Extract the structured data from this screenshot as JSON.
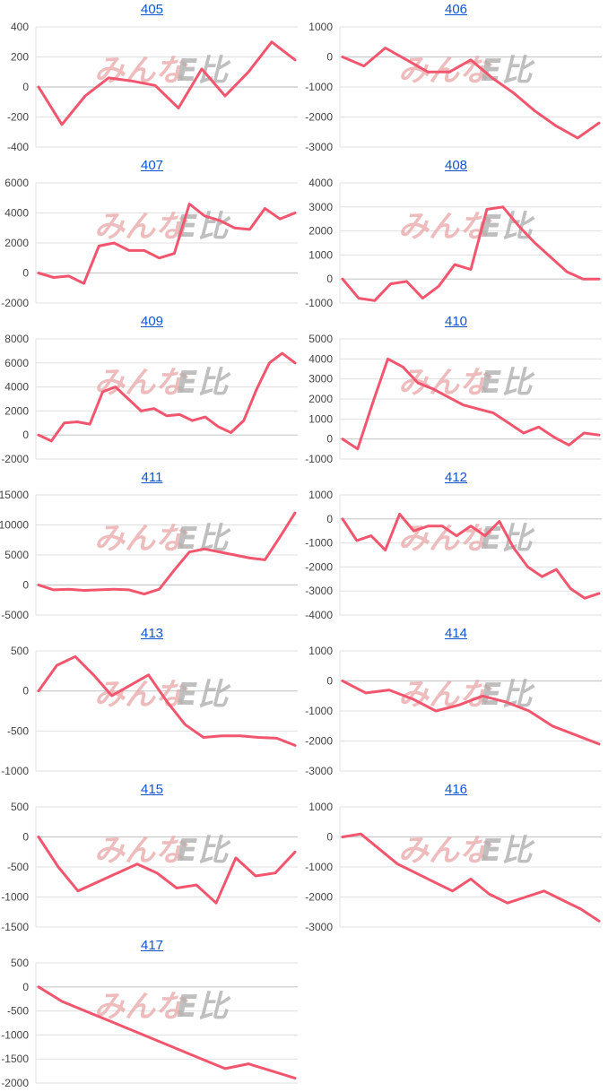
{
  "colors": {
    "line": "#f2566e",
    "grid": "#e0e0e0",
    "zero_line": "#c8c8c8",
    "title": "#1155cc"
  },
  "watermark": {
    "part_a": "みんな",
    "part_b": "E比",
    "icon": "minna-logo-watermark"
  },
  "chart_data": [
    {
      "type": "line",
      "title": "405",
      "yticks": [
        400,
        200,
        0,
        -200,
        -400
      ],
      "series": [
        {
          "values": [
            0,
            -250,
            -60,
            60,
            40,
            10,
            -140,
            120,
            -60,
            100,
            300,
            180
          ]
        }
      ]
    },
    {
      "type": "line",
      "title": "406",
      "yticks": [
        1000,
        0,
        -1000,
        -2000,
        -3000
      ],
      "series": [
        {
          "values": [
            0,
            -300,
            300,
            -100,
            -500,
            -500,
            -100,
            -700,
            -1200,
            -1800,
            -2300,
            -2700,
            -2200
          ]
        }
      ]
    },
    {
      "type": "line",
      "title": "407",
      "yticks": [
        6000,
        4000,
        2000,
        0,
        -2000
      ],
      "series": [
        {
          "values": [
            0,
            -300,
            -200,
            -700,
            1800,
            2000,
            1500,
            1500,
            1000,
            1300,
            4600,
            3800,
            3500,
            3000,
            2900,
            4300,
            3600,
            4000
          ]
        }
      ]
    },
    {
      "type": "line",
      "title": "408",
      "yticks": [
        4000,
        3000,
        2000,
        1000,
        0,
        -1000
      ],
      "series": [
        {
          "values": [
            0,
            -800,
            -900,
            -200,
            -100,
            -800,
            -300,
            600,
            400,
            2900,
            3000,
            2200,
            1500,
            900,
            300,
            0,
            0
          ]
        }
      ]
    },
    {
      "type": "line",
      "title": "409",
      "yticks": [
        8000,
        6000,
        4000,
        2000,
        0,
        -2000
      ],
      "series": [
        {
          "values": [
            0,
            -500,
            1000,
            1100,
            900,
            3600,
            4000,
            3000,
            2000,
            2200,
            1600,
            1700,
            1200,
            1500,
            700,
            200,
            1200,
            3800,
            6000,
            6800,
            6000
          ]
        }
      ]
    },
    {
      "type": "line",
      "title": "410",
      "yticks": [
        5000,
        4000,
        3000,
        2000,
        1000,
        0,
        -1000
      ],
      "series": [
        {
          "values": [
            0,
            -500,
            1800,
            4000,
            3600,
            2800,
            2500,
            2100,
            1700,
            1500,
            1300,
            800,
            300,
            600,
            100,
            -300,
            300,
            200
          ]
        }
      ]
    },
    {
      "type": "line",
      "title": "411",
      "yticks": [
        15000,
        10000,
        5000,
        0,
        -5000
      ],
      "series": [
        {
          "values": [
            0,
            -800,
            -700,
            -900,
            -800,
            -700,
            -800,
            -1500,
            -700,
            2500,
            5500,
            6000,
            5500,
            5000,
            4500,
            4200,
            8000,
            12000
          ]
        }
      ]
    },
    {
      "type": "line",
      "title": "412",
      "yticks": [
        1000,
        0,
        -1000,
        -2000,
        -3000,
        -4000
      ],
      "series": [
        {
          "values": [
            0,
            -900,
            -700,
            -1300,
            200,
            -500,
            -300,
            -300,
            -700,
            -300,
            -700,
            -100,
            -1200,
            -2000,
            -2400,
            -2100,
            -2900,
            -3300,
            -3100
          ]
        }
      ]
    },
    {
      "type": "line",
      "title": "413",
      "yticks": [
        500,
        0,
        -500,
        -1000
      ],
      "series": [
        {
          "values": [
            0,
            320,
            430,
            200,
            -60,
            70,
            200,
            -130,
            -420,
            -580,
            -560,
            -560,
            -580,
            -590,
            -680
          ]
        }
      ]
    },
    {
      "type": "line",
      "title": "414",
      "yticks": [
        1000,
        0,
        -1000,
        -2000,
        -3000
      ],
      "series": [
        {
          "values": [
            0,
            -400,
            -300,
            -600,
            -1000,
            -800,
            -500,
            -700,
            -1000,
            -1500,
            -1800,
            -2100
          ]
        }
      ]
    },
    {
      "type": "line",
      "title": "415",
      "yticks": [
        500,
        0,
        -500,
        -1000,
        -1500
      ],
      "series": [
        {
          "values": [
            0,
            -500,
            -900,
            -750,
            -600,
            -450,
            -600,
            -850,
            -800,
            -1100,
            -350,
            -650,
            -600,
            -250
          ]
        }
      ]
    },
    {
      "type": "line",
      "title": "416",
      "yticks": [
        1000,
        0,
        -1000,
        -2000,
        -3000
      ],
      "series": [
        {
          "values": [
            0,
            100,
            -400,
            -900,
            -1200,
            -1500,
            -1800,
            -1400,
            -1900,
            -2200,
            -2000,
            -1800,
            -2100,
            -2400,
            -2800
          ]
        }
      ]
    },
    {
      "type": "line",
      "title": "417",
      "yticks": [
        500,
        0,
        -500,
        -1000,
        -1500,
        -2000
      ],
      "series": [
        {
          "values": [
            0,
            -300,
            -500,
            -700,
            -900,
            -1100,
            -1300,
            -1500,
            -1700,
            -1600,
            -1750,
            -1900
          ]
        }
      ]
    }
  ]
}
